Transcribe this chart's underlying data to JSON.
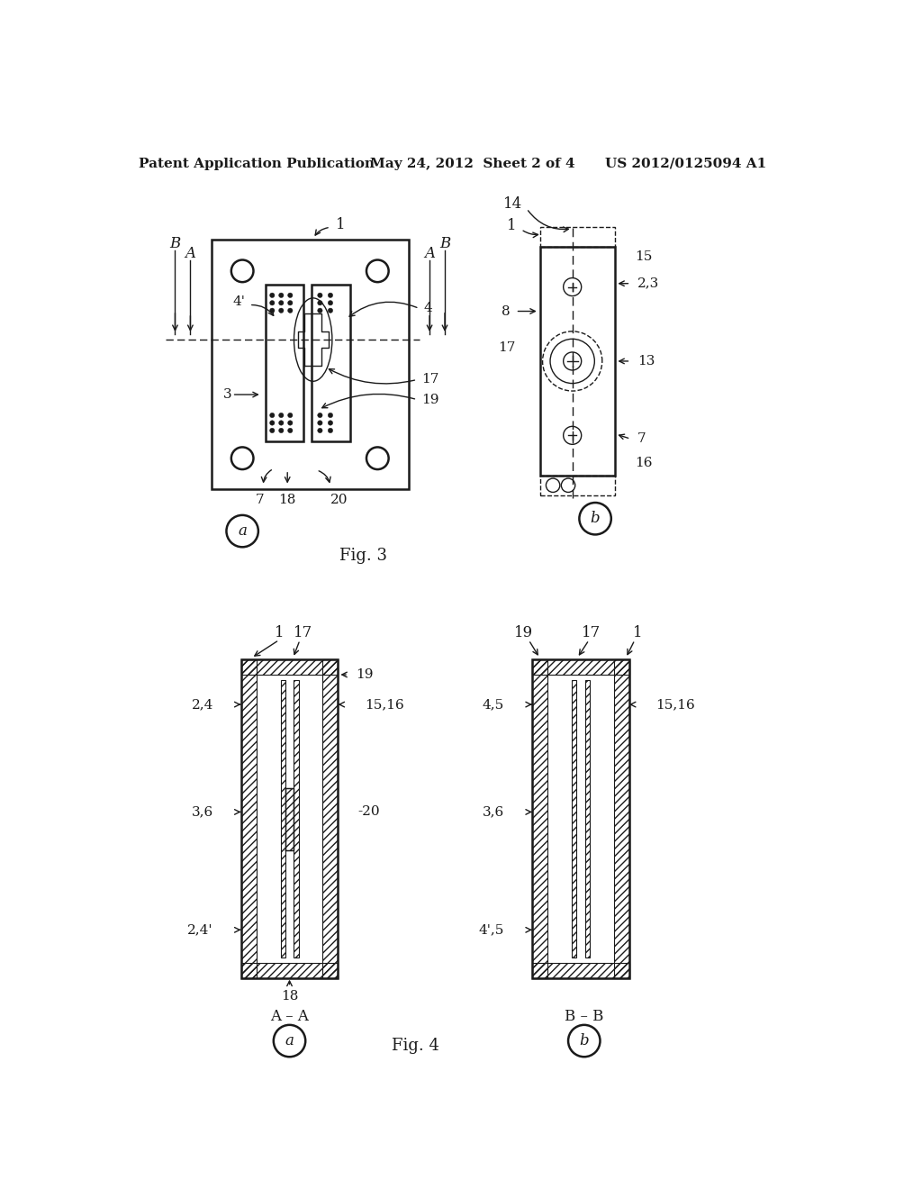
{
  "title_left": "Patent Application Publication",
  "title_mid": "May 24, 2012  Sheet 2 of 4",
  "title_right": "US 2012/0125094 A1",
  "fig3_label": "Fig. 3",
  "fig4_label": "Fig. 4",
  "bg_color": "#ffffff",
  "line_color": "#1a1a1a",
  "fig3a_circle_label": "a",
  "fig3b_circle_label": "b",
  "fig4a_circle_label": "a",
  "fig4b_circle_label": "b"
}
